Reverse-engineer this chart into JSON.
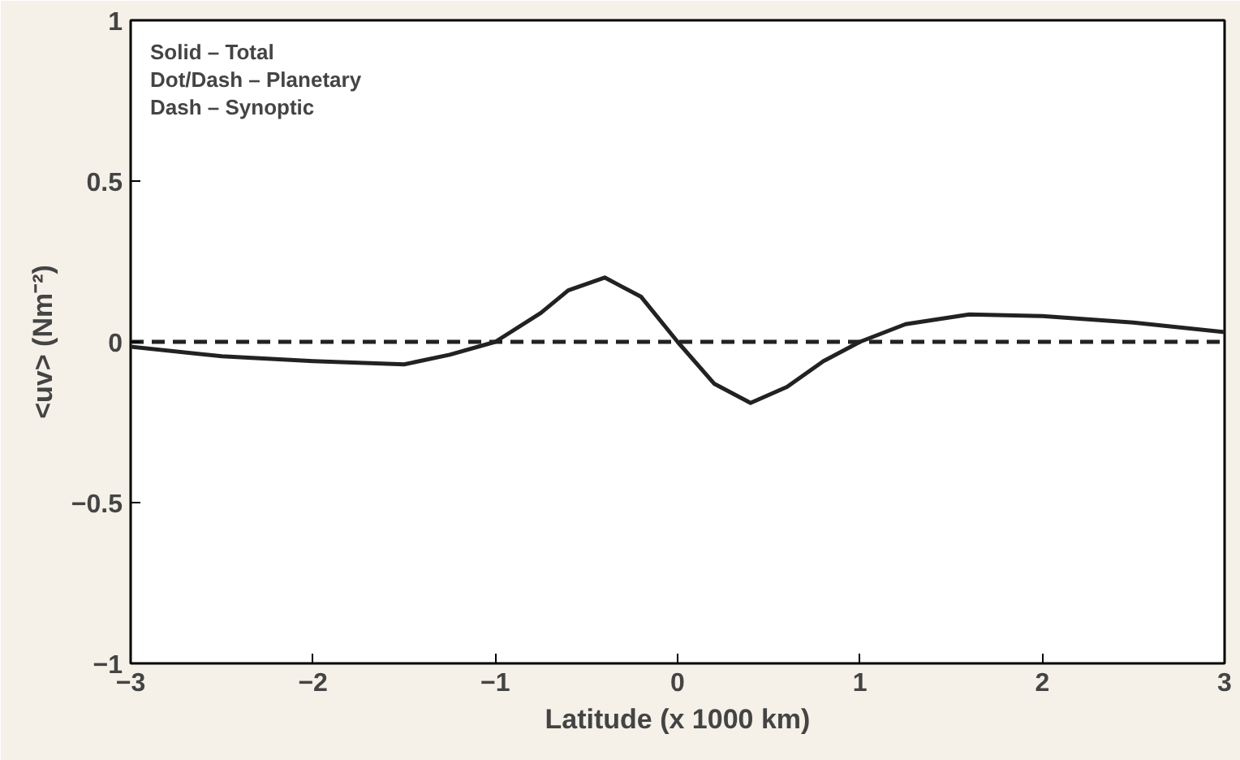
{
  "chart_data": {
    "type": "line",
    "xlabel": "Latitude (x 1000 km)",
    "ylabel": "<uv> (Nm⁻²)",
    "annotations": [
      "Solid – Total",
      "Dot/Dash – Planetary",
      "Dash – Synoptic"
    ],
    "series": [
      {
        "color": "#222222",
        "line_style": "solid",
        "x": [
          -3,
          -2.5,
          -2,
          -1.5,
          -1.25,
          -1,
          -0.75,
          -0.6,
          -0.4,
          -0.2,
          0,
          0.2,
          0.4,
          0.6,
          0.8,
          1,
          1.25,
          1.6,
          2,
          2.5,
          3
        ],
        "values": [
          -0.015,
          -0.045,
          -0.06,
          -0.07,
          -0.04,
          0,
          0.09,
          0.16,
          0.2,
          0.14,
          0,
          -0.13,
          -0.19,
          -0.14,
          -0.06,
          0,
          0.055,
          0.085,
          0.08,
          0.06,
          0.03
        ]
      },
      {
        "color": "#222222",
        "line_style": "dashed",
        "x": [
          -3,
          3
        ],
        "values": [
          0,
          0
        ]
      }
    ],
    "xlim": [
      -3,
      3
    ],
    "ylim": [
      -1,
      1
    ],
    "xticks": [
      {
        "value": -3,
        "label": "−3"
      },
      {
        "value": -2,
        "label": "−2"
      },
      {
        "value": -1,
        "label": "−1"
      },
      0,
      1,
      2,
      3
    ],
    "yticks": [
      {
        "value": -1,
        "label": "−1"
      },
      {
        "value": -0.5,
        "label": "−0.5"
      },
      0,
      0.5,
      1
    ],
    "grid": false
  }
}
